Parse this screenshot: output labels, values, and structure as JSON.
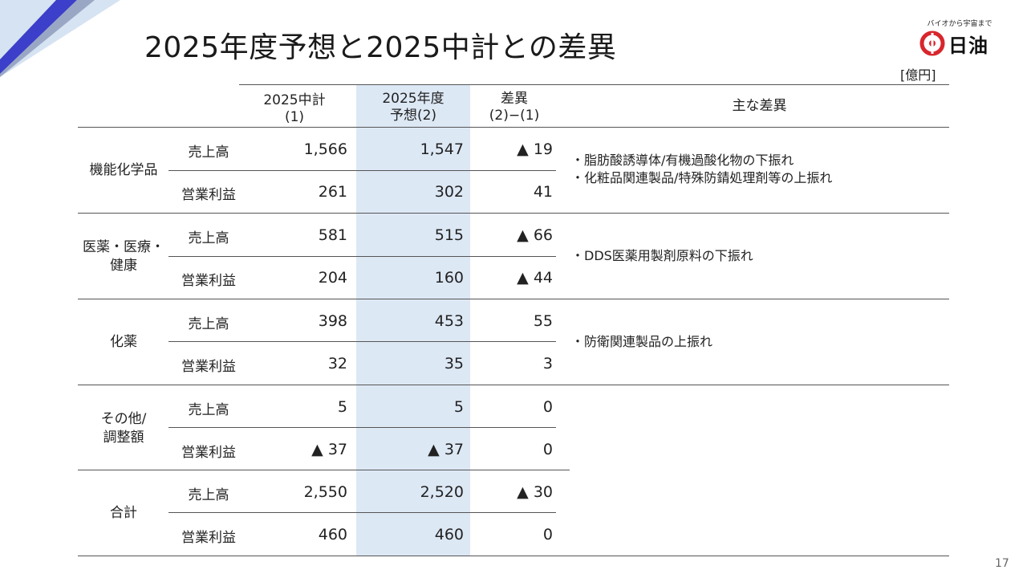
{
  "title": "2025年度予想と2025中計との差異",
  "logo": {
    "tagline": "バイオから宇宙まで",
    "name": "日油"
  },
  "unit": "[億円]",
  "page_number": "17",
  "colors": {
    "accent_blue": "#3b3fc9",
    "column_shade": "#dde8f5",
    "corner_light": "#d6e3f2"
  },
  "table": {
    "headers": {
      "plan": {
        "line1": "2025中計",
        "line2": "(1)"
      },
      "forecast": {
        "line1": "2025年度",
        "line2": "予想(2)"
      },
      "diff": {
        "line1": "差異",
        "line2": "(2)−(1)"
      },
      "notes": "主な差異"
    },
    "segments": [
      {
        "name_lines": [
          "機能化学品"
        ],
        "rows": [
          {
            "item": "売上高",
            "plan": "1,566",
            "forecast": "1,547",
            "diff": "▲ 19"
          },
          {
            "item": "営業利益",
            "plan": "261",
            "forecast": "302",
            "diff": "41"
          }
        ],
        "notes": [
          "・脂肪酸誘導体/有機過酸化物の下振れ",
          "・化粧品関連製品/特殊防錆処理剤等の上振れ"
        ]
      },
      {
        "name_lines": [
          "医薬・医療・",
          "健康"
        ],
        "rows": [
          {
            "item": "売上高",
            "plan": "581",
            "forecast": "515",
            "diff": "▲ 66"
          },
          {
            "item": "営業利益",
            "plan": "204",
            "forecast": "160",
            "diff": "▲ 44"
          }
        ],
        "notes": [
          "・DDS医薬用製剤原料の下振れ"
        ]
      },
      {
        "name_lines": [
          "化薬"
        ],
        "rows": [
          {
            "item": "売上高",
            "plan": "398",
            "forecast": "453",
            "diff": "55"
          },
          {
            "item": "営業利益",
            "plan": "32",
            "forecast": "35",
            "diff": "3"
          }
        ],
        "notes": [
          "・防衛関連製品の上振れ"
        ]
      },
      {
        "name_lines": [
          "その他/",
          "調整額"
        ],
        "rows": [
          {
            "item": "売上高",
            "plan": "5",
            "forecast": "5",
            "diff": "0"
          },
          {
            "item": "営業利益",
            "plan": "▲ 37",
            "forecast": "▲ 37",
            "diff": "0"
          }
        ],
        "notes": []
      },
      {
        "name_lines": [
          "合計"
        ],
        "rows": [
          {
            "item": "売上高",
            "plan": "2,550",
            "forecast": "2,520",
            "diff": "▲ 30"
          },
          {
            "item": "営業利益",
            "plan": "460",
            "forecast": "460",
            "diff": "0"
          }
        ],
        "notes": []
      }
    ]
  }
}
